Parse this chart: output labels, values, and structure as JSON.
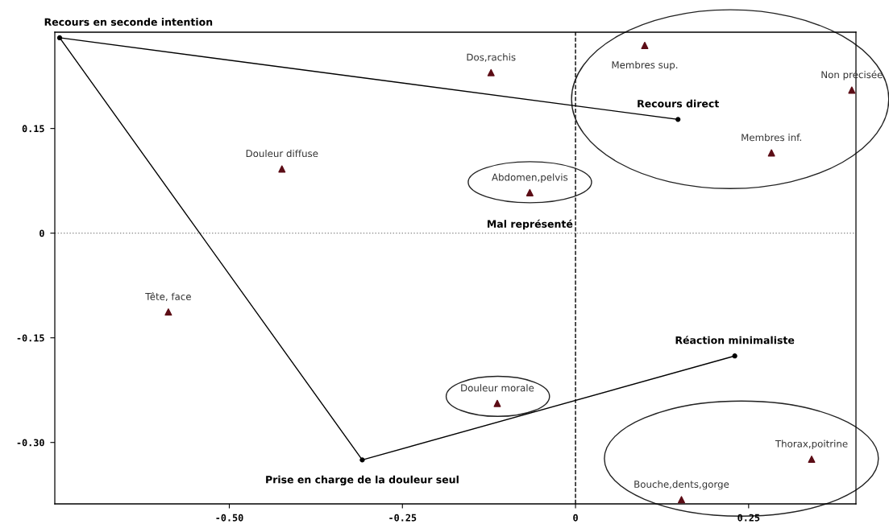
{
  "chart_data": {
    "type": "scatter",
    "xlim": [
      -0.752,
      0.405
    ],
    "ylim": [
      -0.388,
      0.288
    ],
    "xticks": [
      {
        "value": -0.5,
        "label": "-0.50"
      },
      -0.25,
      0,
      0.25
    ],
    "yticks": [
      {
        "value": -0.3,
        "label": "-0.30"
      },
      -0.15,
      0,
      0.15
    ],
    "grid": false,
    "legend": false,
    "ref_lines": [
      {
        "axis": "x",
        "value": 0,
        "line_style": "dashed",
        "color": "#000000"
      },
      {
        "axis": "y",
        "value": 0,
        "line_style": "dotted",
        "color": "#888888"
      }
    ],
    "series": [
      {
        "marker": "triangle",
        "color": "#5c0d16",
        "x": [
          -0.424,
          -0.122,
          0.1,
          0.399,
          0.283,
          -0.066,
          -0.588,
          -0.113,
          0.341,
          0.153
        ],
        "values": [
          0.092,
          0.23,
          0.269,
          0.205,
          0.115,
          0.058,
          -0.113,
          -0.244,
          -0.324,
          -0.382
        ]
      },
      {
        "type": "line",
        "marker": "circle",
        "line_style": "solid",
        "color": "#000000",
        "x": [
          0.148,
          -0.745,
          -0.308,
          0.23
        ],
        "values": [
          0.163,
          0.28,
          -0.325,
          -0.176
        ]
      }
    ],
    "annotations": [
      {
        "text": "Douleur diffuse",
        "x": -0.424,
        "y": 0.092
      },
      {
        "text": "Dos,rachis",
        "x": -0.122,
        "y": 0.23
      },
      {
        "text": "Membres sup.",
        "x": 0.1,
        "y": 0.269
      },
      {
        "text": "Non précisée",
        "x": 0.399,
        "y": 0.205
      },
      {
        "text": "Membres inf.",
        "x": 0.283,
        "y": 0.115
      },
      {
        "text": "Abdomen,pelvis",
        "x": -0.066,
        "y": 0.058
      },
      {
        "text": "Tête, face",
        "x": -0.588,
        "y": -0.113
      },
      {
        "text": "Douleur morale",
        "x": -0.113,
        "y": -0.244
      },
      {
        "text": "Thorax,poitrine",
        "x": 0.341,
        "y": -0.324
      },
      {
        "text": "Bouche,dents,gorge",
        "x": 0.153,
        "y": -0.382
      },
      {
        "text": "Recours direct",
        "x": 0.148,
        "y": 0.163
      },
      {
        "text": "Recours en seconde intention",
        "x": -0.745,
        "y": 0.28
      },
      {
        "text": "Prise en charge de la douleur seul",
        "x": -0.308,
        "y": -0.325
      },
      {
        "text": "Réaction minimaliste",
        "x": 0.23,
        "y": -0.176
      },
      {
        "text": "Mal représenté",
        "x": -0.066,
        "y": 0.058
      }
    ]
  }
}
